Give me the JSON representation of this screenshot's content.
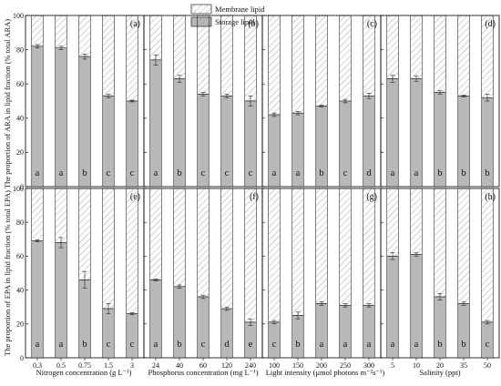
{
  "legend": {
    "membrane": "Membrane lipid",
    "storage": "Storage lipid"
  },
  "colors": {
    "storage_fill": "#b8b8b8",
    "membrane_hatch": "#8a8a8a",
    "axis": "#000000"
  },
  "y_axis": {
    "top_title": "The proportion of ARA in lipid fraction (% total ARA)",
    "bottom_title": "The proportion of EPA in lipid fraction (% total EPA)",
    "ticks": [
      "0",
      "20",
      "40",
      "60",
      "80",
      "100"
    ]
  },
  "x_titles": [
    "Nitrogen concentration (g L⁻¹)",
    "Phosphorus concentration (mg L⁻¹)",
    "Light intensity (μmol photons m⁻²s⁻¹)",
    "Salinity (ppt)"
  ],
  "chart_data": [
    {
      "type": "bar",
      "stacked": true,
      "panel": "(a)",
      "row": "ARA",
      "series": [
        {
          "name": "Storage lipid"
        },
        {
          "name": "Membrane lipid"
        }
      ],
      "categories": [
        "0.3",
        "0.5",
        "0.75",
        "1.5",
        "3"
      ],
      "storage": [
        82,
        81,
        76,
        53,
        50
      ],
      "error": [
        1,
        1,
        1.5,
        1,
        0.5
      ],
      "letters": [
        "a",
        "a",
        "b",
        "c",
        "c"
      ],
      "ylim": [
        0,
        100
      ]
    },
    {
      "type": "bar",
      "stacked": true,
      "panel": "(b)",
      "row": "ARA",
      "series": [
        {
          "name": "Storage lipid"
        },
        {
          "name": "Membrane lipid"
        }
      ],
      "categories": [
        "24",
        "40",
        "60",
        "120",
        "240"
      ],
      "storage": [
        74,
        63,
        54,
        53,
        50
      ],
      "error": [
        3,
        2,
        1,
        1,
        3
      ],
      "letters": [
        "a",
        "b",
        "c",
        "c",
        "c"
      ],
      "ylim": [
        0,
        100
      ]
    },
    {
      "type": "bar",
      "stacked": true,
      "panel": "(c)",
      "row": "ARA",
      "series": [
        {
          "name": "Storage lipid"
        },
        {
          "name": "Membrane lipid"
        }
      ],
      "categories": [
        "100",
        "150",
        "200",
        "250",
        "300"
      ],
      "storage": [
        42,
        43,
        47,
        50,
        53
      ],
      "error": [
        1,
        1,
        0.5,
        1,
        1.5
      ],
      "letters": [
        "a",
        "a",
        "b",
        "c",
        "d"
      ],
      "ylim": [
        0,
        100
      ]
    },
    {
      "type": "bar",
      "stacked": true,
      "panel": "(d)",
      "row": "ARA",
      "series": [
        {
          "name": "Storage lipid"
        },
        {
          "name": "Membrane lipid"
        }
      ],
      "categories": [
        "5",
        "10",
        "20",
        "35",
        "50"
      ],
      "storage": [
        63,
        63,
        55,
        53,
        52
      ],
      "error": [
        2,
        1.5,
        1,
        0.5,
        2
      ],
      "letters": [
        "a",
        "a",
        "b",
        "b",
        "b"
      ],
      "ylim": [
        0,
        100
      ]
    },
    {
      "type": "bar",
      "stacked": true,
      "panel": "(e)",
      "row": "EPA",
      "series": [
        {
          "name": "Storage lipid"
        },
        {
          "name": "Membrane lipid"
        }
      ],
      "categories": [
        "0.3",
        "0.5",
        "0.75",
        "1.5",
        "3"
      ],
      "storage": [
        69,
        68,
        46,
        29,
        26
      ],
      "error": [
        0.5,
        3,
        5,
        3,
        0.5
      ],
      "letters": [
        "a",
        "a",
        "b",
        "c",
        "c"
      ],
      "ylim": [
        0,
        100
      ]
    },
    {
      "type": "bar",
      "stacked": true,
      "panel": "(f)",
      "row": "EPA",
      "series": [
        {
          "name": "Storage lipid"
        },
        {
          "name": "Membrane lipid"
        }
      ],
      "categories": [
        "24",
        "40",
        "60",
        "120",
        "240"
      ],
      "storage": [
        46,
        42,
        36,
        29,
        21
      ],
      "error": [
        0.5,
        1,
        1,
        1,
        2
      ],
      "letters": [
        "a",
        "b",
        "c",
        "d",
        "e"
      ],
      "ylim": [
        0,
        100
      ]
    },
    {
      "type": "bar",
      "stacked": true,
      "panel": "(g)",
      "row": "EPA",
      "series": [
        {
          "name": "Storage lipid"
        },
        {
          "name": "Membrane lipid"
        }
      ],
      "categories": [
        "100",
        "150",
        "200",
        "250",
        "300"
      ],
      "storage": [
        21,
        25,
        32,
        31,
        31
      ],
      "error": [
        1,
        2,
        1,
        1,
        1
      ],
      "letters": [
        "c",
        "b",
        "a",
        "a",
        "a"
      ],
      "ylim": [
        0,
        100
      ]
    },
    {
      "type": "bar",
      "stacked": true,
      "panel": "(h)",
      "row": "EPA",
      "series": [
        {
          "name": "Storage lipid"
        },
        {
          "name": "Membrane lipid"
        }
      ],
      "categories": [
        "5",
        "10",
        "20",
        "35",
        "50"
      ],
      "storage": [
        60,
        61,
        36,
        32,
        21
      ],
      "error": [
        2,
        1,
        2,
        1,
        1
      ],
      "letters": [
        "a",
        "a",
        "b",
        "b",
        "c"
      ],
      "ylim": [
        0,
        100
      ]
    }
  ]
}
